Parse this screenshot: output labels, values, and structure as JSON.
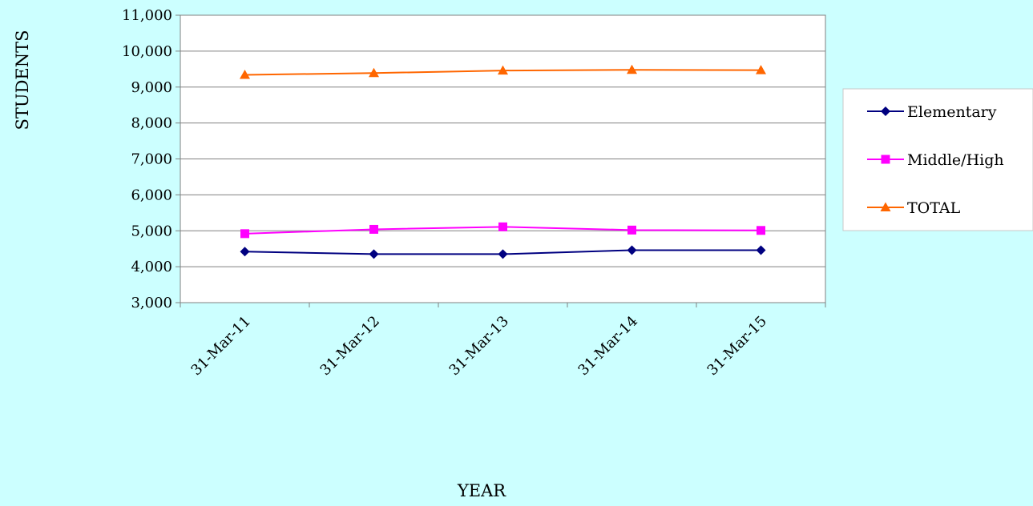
{
  "chart_data": {
    "type": "line",
    "title": "",
    "xlabel": "YEAR",
    "ylabel": "STUDENTS",
    "categories": [
      "31-Mar-11",
      "31-Mar-12",
      "31-Mar-13",
      "31-Mar-14",
      "31-Mar-15"
    ],
    "ylim": [
      3000,
      11000
    ],
    "yticks": [
      "3,000",
      "4,000",
      "5,000",
      "6,000",
      "7,000",
      "8,000",
      "9,000",
      "10,000",
      "11,000"
    ],
    "ytick_values": [
      3000,
      4000,
      5000,
      6000,
      7000,
      8000,
      9000,
      10000,
      11000
    ],
    "grid": "horizontal",
    "legend_position": "right",
    "series": [
      {
        "name": "Elementary",
        "values": [
          4420,
          4350,
          4350,
          4460,
          4460
        ],
        "color": "#000080",
        "marker": "diamond"
      },
      {
        "name": "Middle/High",
        "values": [
          4920,
          5040,
          5110,
          5020,
          5010
        ],
        "color": "#ff00ff",
        "marker": "square"
      },
      {
        "name": "TOTAL",
        "values": [
          9340,
          9390,
          9460,
          9480,
          9470
        ],
        "color": "#ff6600",
        "marker": "triangle"
      }
    ]
  }
}
